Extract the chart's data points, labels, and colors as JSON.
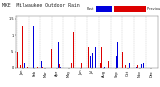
{
  "title": "MKE  Milwaukee Outdoor Rain",
  "legend_current": "Past",
  "legend_previous": "Previous Year",
  "color_current": "#0000dd",
  "color_previous": "#dd0000",
  "background_color": "#ffffff",
  "grid_color": "#888888",
  "n_days": 365,
  "ylim": [
    0,
    1.6
  ],
  "title_fontsize": 3.5,
  "tick_fontsize": 2.5
}
